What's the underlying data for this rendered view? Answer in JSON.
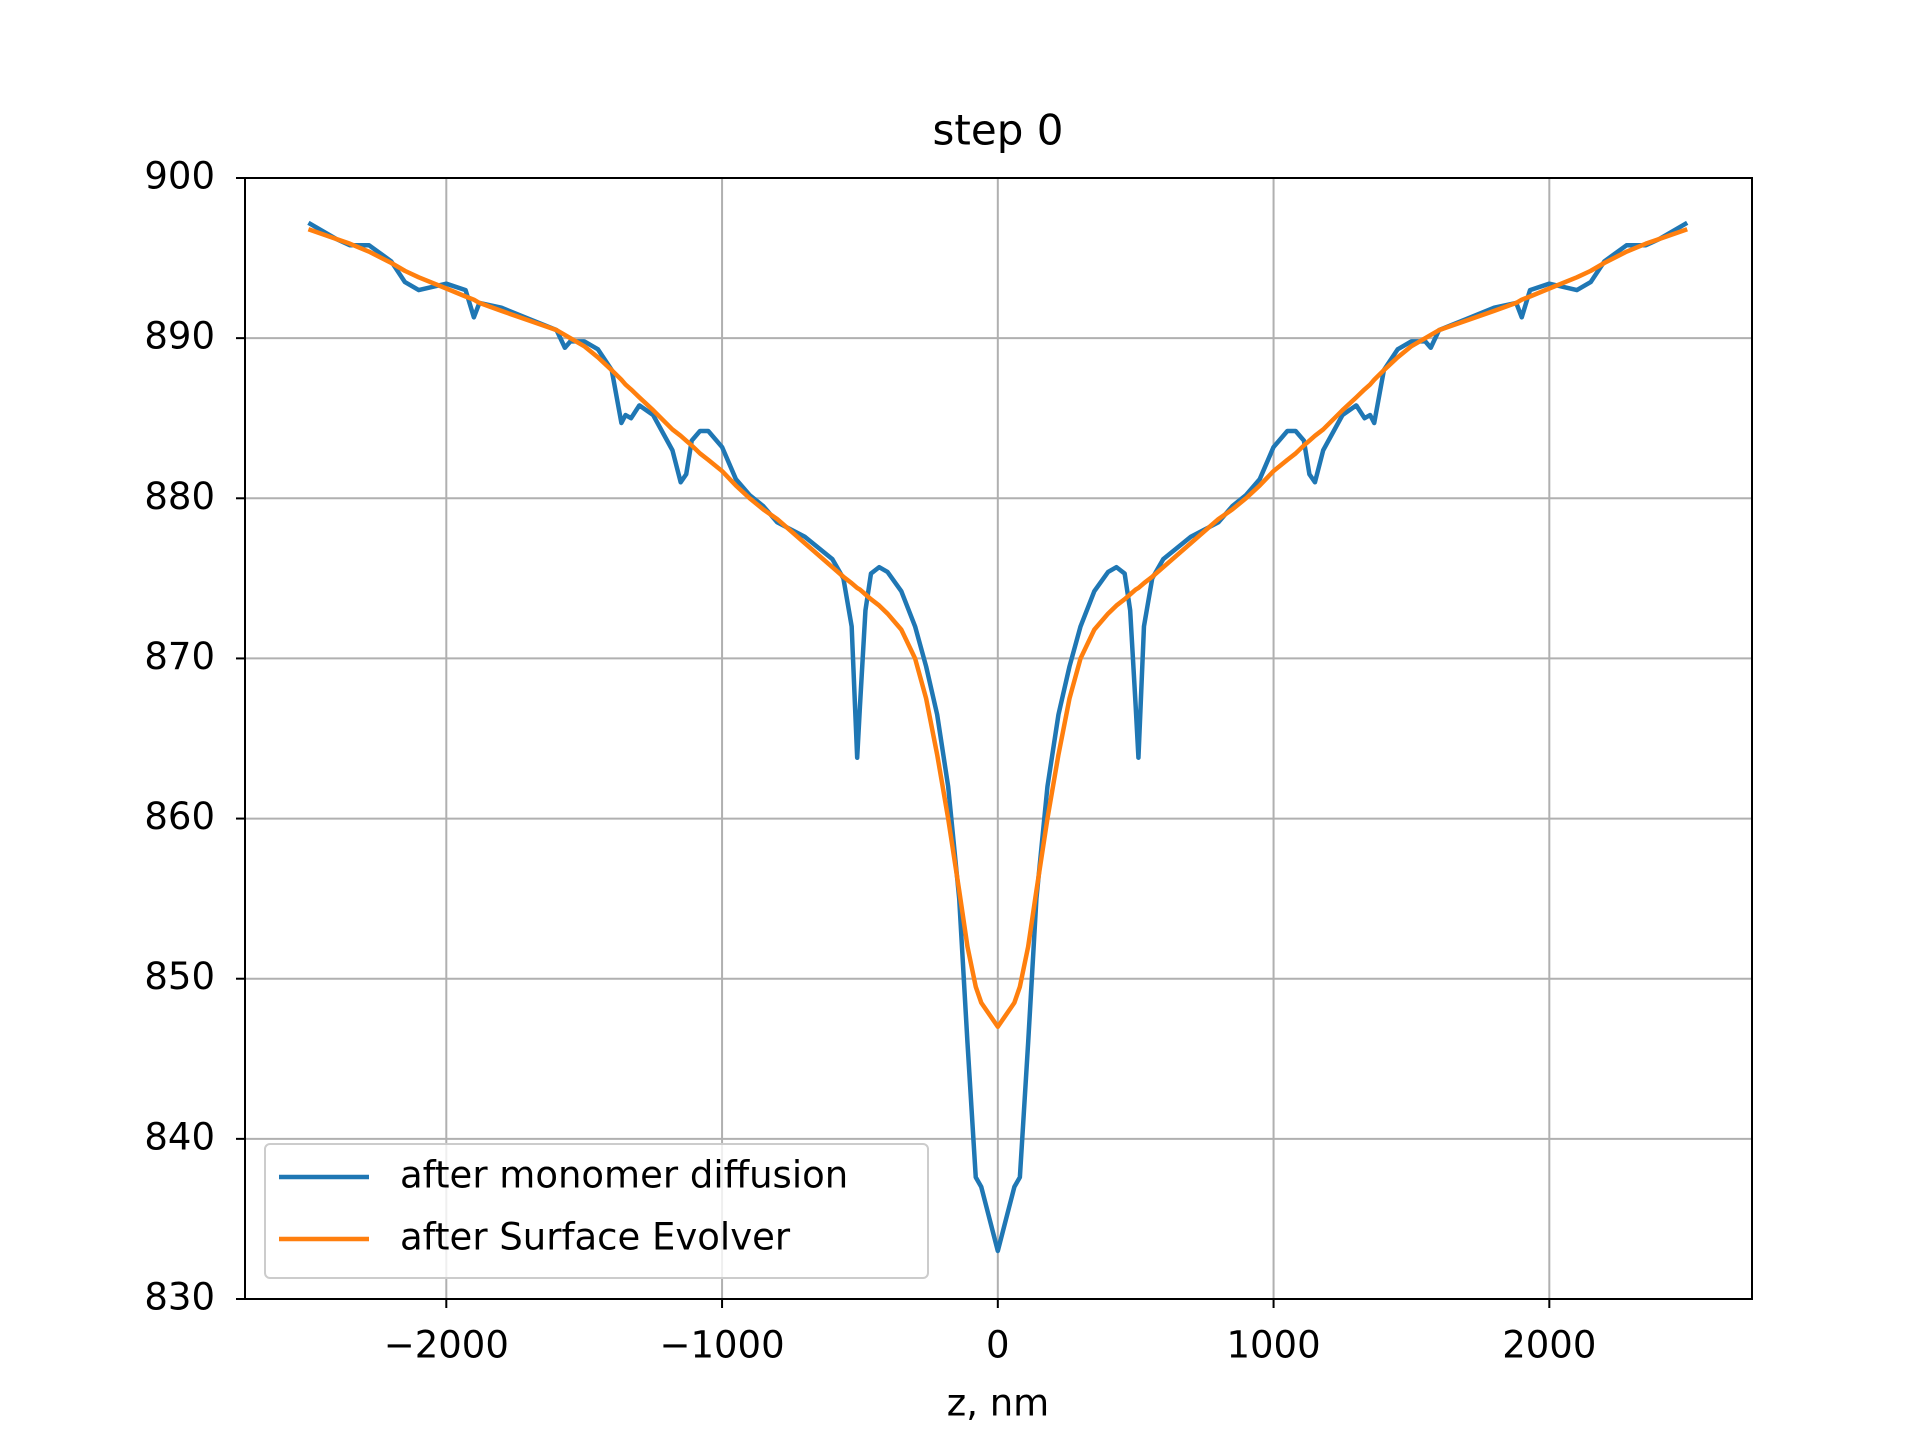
{
  "chart_data": {
    "type": "line",
    "title": "step 0",
    "x_label": "z, nm",
    "x": [
      -2500,
      -2400,
      -2350,
      -2280,
      -2200,
      -2150,
      -2100,
      -2000,
      -1930,
      -1900,
      -1880,
      -1800,
      -1700,
      -1600,
      -1570,
      -1550,
      -1500,
      -1450,
      -1400,
      -1365,
      -1350,
      -1330,
      -1300,
      -1250,
      -1180,
      -1150,
      -1130,
      -1110,
      -1080,
      -1050,
      -1000,
      -950,
      -900,
      -850,
      -800,
      -700,
      -600,
      -560,
      -530,
      -510,
      -500,
      -480,
      -460,
      -430,
      -400,
      -350,
      -300,
      -260,
      -220,
      -180,
      -140,
      -110,
      -80,
      -60,
      0,
      60,
      80,
      110,
      140,
      180,
      220,
      260,
      300,
      350,
      400,
      430,
      460,
      480,
      500,
      510,
      530,
      560,
      600,
      700,
      800,
      850,
      900,
      950,
      1000,
      1050,
      1080,
      1110,
      1130,
      1150,
      1180,
      1250,
      1300,
      1330,
      1350,
      1365,
      1400,
      1450,
      1500,
      1550,
      1570,
      1600,
      1700,
      1800,
      1880,
      1900,
      1930,
      2000,
      2100,
      2150,
      2200,
      2280,
      2350,
      2400,
      2500
    ],
    "series": [
      {
        "name": "after monomer diffusion",
        "color": "#1f77b4",
        "values": [
          897.2,
          896.2,
          895.8,
          895.8,
          894.8,
          893.5,
          893,
          893.4,
          893,
          891.3,
          892.2,
          891.9,
          891.2,
          890.5,
          889.4,
          889.8,
          889.8,
          889.3,
          888,
          884.7,
          885.2,
          885,
          885.8,
          885.2,
          883,
          881,
          881.5,
          883.6,
          884.2,
          884.2,
          883.2,
          881.2,
          880.2,
          879.5,
          878.5,
          877.6,
          876.2,
          875,
          872,
          863.8,
          867,
          873,
          875.3,
          875.7,
          875.4,
          874.2,
          872,
          869.5,
          866.5,
          862,
          855,
          846,
          837.6,
          837,
          833,
          837,
          837.6,
          846,
          855,
          862,
          866.5,
          869.5,
          872,
          874.2,
          875.4,
          875.7,
          875.3,
          873,
          867,
          863.8,
          872,
          875,
          876.2,
          877.6,
          878.5,
          879.5,
          880.2,
          881.2,
          883.2,
          884.2,
          884.2,
          883.6,
          881.5,
          881,
          883,
          885.2,
          885.8,
          885,
          885.2,
          884.7,
          888,
          889.3,
          889.8,
          889.8,
          889.4,
          890.5,
          891.2,
          891.9,
          892.2,
          891.3,
          893,
          893.4,
          893,
          893.5,
          894.8,
          895.8,
          895.8,
          896.2,
          897.2
        ]
      },
      {
        "name": "after Surface Evolver",
        "color": "#ff7f0e",
        "values": [
          896.8,
          896.2,
          895.9,
          895.4,
          894.7,
          894.2,
          893.8,
          893.1,
          892.6,
          892.4,
          892.2,
          891.7,
          891.1,
          890.5,
          890.2,
          890,
          889.5,
          888.8,
          888,
          887.4,
          887.1,
          886.8,
          886.3,
          885.5,
          884.3,
          883.9,
          883.6,
          883.3,
          882.8,
          882.4,
          881.7,
          880.8,
          880,
          879.3,
          878.7,
          877.2,
          875.7,
          875.1,
          874.7,
          874.4,
          874.3,
          874,
          873.7,
          873.3,
          872.8,
          871.8,
          870,
          867.5,
          864,
          860,
          855.5,
          852,
          849.5,
          848.5,
          847,
          848.5,
          849.5,
          852,
          855.5,
          860,
          864,
          867.5,
          870,
          871.8,
          872.8,
          873.3,
          873.7,
          874,
          874.3,
          874.4,
          874.7,
          875.1,
          875.7,
          877.2,
          878.7,
          879.3,
          880,
          880.8,
          881.7,
          882.4,
          882.8,
          883.3,
          883.6,
          883.9,
          884.3,
          885.5,
          886.3,
          886.8,
          887.1,
          887.4,
          888,
          888.8,
          889.5,
          890,
          890.2,
          890.5,
          891.1,
          891.7,
          892.2,
          892.4,
          892.6,
          893.1,
          893.8,
          894.2,
          894.7,
          895.4,
          895.9,
          896.2,
          896.8
        ]
      }
    ],
    "xlim": [
      -2730,
      2735
    ],
    "ylim": [
      830,
      900
    ],
    "xticks": [
      {
        "value": -2000,
        "label": "−2000"
      },
      {
        "value": -1000,
        "label": "−1000"
      },
      0,
      1000,
      2000
    ],
    "yticks": [
      830,
      840,
      850,
      860,
      870,
      880,
      890,
      900
    ],
    "grid": true,
    "legend": "lower left"
  }
}
